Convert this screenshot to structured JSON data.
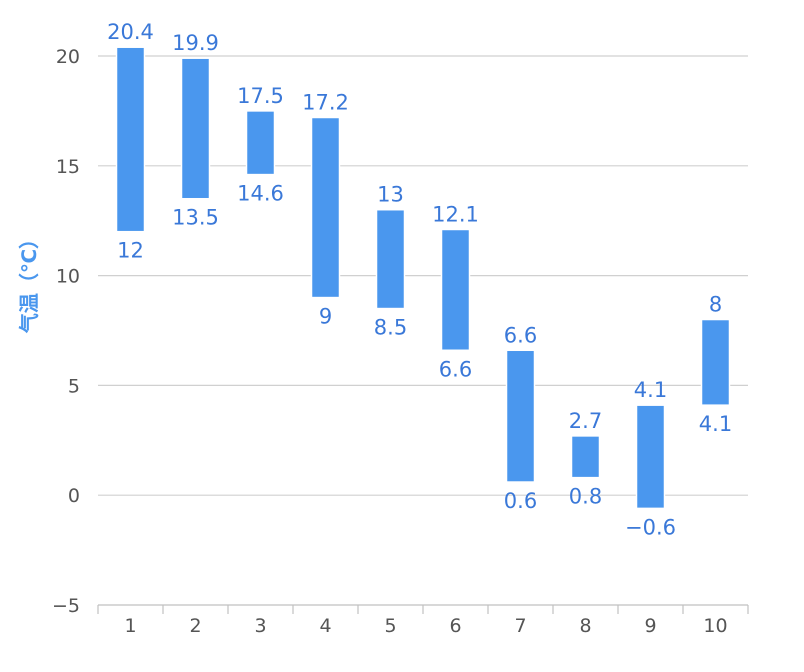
{
  "chart_data": {
    "type": "bar",
    "subtype": "columnrange",
    "categories": [
      "1",
      "2",
      "3",
      "4",
      "5",
      "6",
      "7",
      "8",
      "9",
      "10"
    ],
    "series": [
      {
        "low": [
          12,
          13.5,
          14.6,
          9,
          8.5,
          6.6,
          0.6,
          0.8,
          -0.6,
          4.1
        ],
        "high": [
          20.4,
          19.9,
          17.5,
          17.2,
          13,
          12.1,
          6.6,
          2.7,
          4.1,
          8
        ]
      }
    ],
    "low_labels": [
      "12",
      "13.5",
      "14.6",
      "9",
      "8.5",
      "6.6",
      "0.6",
      "0.8",
      "−0.6",
      "4.1"
    ],
    "high_labels": [
      "20.4",
      "19.9",
      "17.5",
      "17.2",
      "13",
      "12.1",
      "6.6",
      "2.7",
      "4.1",
      "8"
    ],
    "title": "",
    "xlabel": "",
    "ylabel": "气温（℃）",
    "ylim": [
      -5,
      20
    ],
    "yticks": [
      20,
      15,
      10,
      5,
      0,
      -5
    ],
    "ytick_labels": [
      "20",
      "15",
      "10",
      "5",
      "0",
      "−5"
    ],
    "grid": true,
    "legend": "none"
  },
  "colors": {
    "bar": "#4a97ee",
    "label": "#3a78d8",
    "axis_title": "#4a97ee"
  }
}
